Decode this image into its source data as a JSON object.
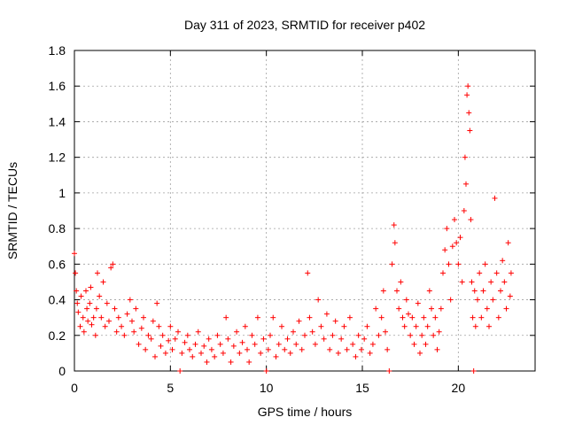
{
  "chart_data": {
    "type": "scatter",
    "title": "Day 311 of 2023, SRMTID for receiver p402",
    "xlabel": "GPS time / hours",
    "ylabel": "SRMTID / TECUs",
    "xlim": [
      0,
      24
    ],
    "ylim": [
      0,
      1.8
    ],
    "xticks": [
      0,
      5,
      10,
      15,
      20
    ],
    "xtick_labels": [
      "0",
      "5",
      "10",
      "15",
      "20"
    ],
    "yticks": [
      0,
      0.2,
      0.4,
      0.6,
      0.8,
      1.0,
      1.2,
      1.4,
      1.6,
      1.8
    ],
    "ytick_labels": [
      "0",
      "0.2",
      "0.4",
      "0.6",
      "0.8",
      "1",
      "1.2",
      "1.4",
      "1.6",
      "1.8"
    ],
    "grid": true,
    "marker": "+",
    "marker_color": "#ff0000",
    "series": [
      {
        "name": "SRMTID",
        "points": [
          [
            0.0,
            0.66
          ],
          [
            0.05,
            0.55
          ],
          [
            0.1,
            0.45
          ],
          [
            0.15,
            0.38
          ],
          [
            0.2,
            0.33
          ],
          [
            0.3,
            0.25
          ],
          [
            0.35,
            0.42
          ],
          [
            0.45,
            0.3
          ],
          [
            0.5,
            0.22
          ],
          [
            0.6,
            0.45
          ],
          [
            0.65,
            0.35
          ],
          [
            0.7,
            0.28
          ],
          [
            0.8,
            0.38
          ],
          [
            0.85,
            0.47
          ],
          [
            0.9,
            0.26
          ],
          [
            1.0,
            0.3
          ],
          [
            1.1,
            0.2
          ],
          [
            1.15,
            0.35
          ],
          [
            1.2,
            0.55
          ],
          [
            1.3,
            0.42
          ],
          [
            1.4,
            0.3
          ],
          [
            1.5,
            0.5
          ],
          [
            1.6,
            0.25
          ],
          [
            1.7,
            0.38
          ],
          [
            1.8,
            0.28
          ],
          [
            1.9,
            0.58
          ],
          [
            2.0,
            0.6
          ],
          [
            2.1,
            0.35
          ],
          [
            2.2,
            0.22
          ],
          [
            2.3,
            0.3
          ],
          [
            2.45,
            0.25
          ],
          [
            2.6,
            0.2
          ],
          [
            2.75,
            0.32
          ],
          [
            2.9,
            0.4
          ],
          [
            3.0,
            0.28
          ],
          [
            3.1,
            0.22
          ],
          [
            3.2,
            0.35
          ],
          [
            3.35,
            0.15
          ],
          [
            3.5,
            0.24
          ],
          [
            3.6,
            0.3
          ],
          [
            3.7,
            0.12
          ],
          [
            3.85,
            0.2
          ],
          [
            4.0,
            0.18
          ],
          [
            4.1,
            0.28
          ],
          [
            4.2,
            0.08
          ],
          [
            4.3,
            0.38
          ],
          [
            4.4,
            0.25
          ],
          [
            4.5,
            0.14
          ],
          [
            4.6,
            0.2
          ],
          [
            4.75,
            0.1
          ],
          [
            4.9,
            0.17
          ],
          [
            5.0,
            0.25
          ],
          [
            5.1,
            0.12
          ],
          [
            5.25,
            0.18
          ],
          [
            5.4,
            0.22
          ],
          [
            5.5,
            0.0
          ],
          [
            5.6,
            0.1
          ],
          [
            5.75,
            0.16
          ],
          [
            5.9,
            0.2
          ],
          [
            6.0,
            0.12
          ],
          [
            6.15,
            0.08
          ],
          [
            6.3,
            0.15
          ],
          [
            6.45,
            0.22
          ],
          [
            6.6,
            0.1
          ],
          [
            6.75,
            0.14
          ],
          [
            6.9,
            0.05
          ],
          [
            7.0,
            0.18
          ],
          [
            7.15,
            0.12
          ],
          [
            7.3,
            0.08
          ],
          [
            7.45,
            0.2
          ],
          [
            7.6,
            0.15
          ],
          [
            7.75,
            0.1
          ],
          [
            7.9,
            0.3
          ],
          [
            8.0,
            0.18
          ],
          [
            8.15,
            0.05
          ],
          [
            8.3,
            0.14
          ],
          [
            8.45,
            0.22
          ],
          [
            8.6,
            0.1
          ],
          [
            8.75,
            0.16
          ],
          [
            8.9,
            0.25
          ],
          [
            9.0,
            0.12
          ],
          [
            9.1,
            0.05
          ],
          [
            9.25,
            0.2
          ],
          [
            9.4,
            0.15
          ],
          [
            9.55,
            0.3
          ],
          [
            9.7,
            0.1
          ],
          [
            9.85,
            0.18
          ],
          [
            10.0,
            0.0
          ],
          [
            10.1,
            0.12
          ],
          [
            10.2,
            0.2
          ],
          [
            10.35,
            0.3
          ],
          [
            10.5,
            0.08
          ],
          [
            10.65,
            0.15
          ],
          [
            10.8,
            0.25
          ],
          [
            10.95,
            0.12
          ],
          [
            11.1,
            0.18
          ],
          [
            11.25,
            0.1
          ],
          [
            11.4,
            0.22
          ],
          [
            11.55,
            0.15
          ],
          [
            11.7,
            0.28
          ],
          [
            11.85,
            0.12
          ],
          [
            12.0,
            0.2
          ],
          [
            12.15,
            0.55
          ],
          [
            12.25,
            0.3
          ],
          [
            12.4,
            0.22
          ],
          [
            12.55,
            0.15
          ],
          [
            12.7,
            0.4
          ],
          [
            12.85,
            0.25
          ],
          [
            13.0,
            0.18
          ],
          [
            13.15,
            0.32
          ],
          [
            13.3,
            0.12
          ],
          [
            13.45,
            0.2
          ],
          [
            13.6,
            0.28
          ],
          [
            13.75,
            0.1
          ],
          [
            13.9,
            0.18
          ],
          [
            14.05,
            0.25
          ],
          [
            14.2,
            0.12
          ],
          [
            14.35,
            0.3
          ],
          [
            14.5,
            0.15
          ],
          [
            14.65,
            0.08
          ],
          [
            14.8,
            0.2
          ],
          [
            14.95,
            0.12
          ],
          [
            15.1,
            0.18
          ],
          [
            15.25,
            0.25
          ],
          [
            15.4,
            0.1
          ],
          [
            15.55,
            0.15
          ],
          [
            15.7,
            0.35
          ],
          [
            15.85,
            0.2
          ],
          [
            16.0,
            0.3
          ],
          [
            16.1,
            0.45
          ],
          [
            16.2,
            0.22
          ],
          [
            16.3,
            0.12
          ],
          [
            16.4,
            0.0
          ],
          [
            16.55,
            0.6
          ],
          [
            16.65,
            0.82
          ],
          [
            16.7,
            0.72
          ],
          [
            16.8,
            0.45
          ],
          [
            16.9,
            0.35
          ],
          [
            17.0,
            0.5
          ],
          [
            17.1,
            0.3
          ],
          [
            17.2,
            0.25
          ],
          [
            17.3,
            0.4
          ],
          [
            17.4,
            0.32
          ],
          [
            17.5,
            0.2
          ],
          [
            17.6,
            0.3
          ],
          [
            17.7,
            0.15
          ],
          [
            17.8,
            0.25
          ],
          [
            17.9,
            0.38
          ],
          [
            18.0,
            0.1
          ],
          [
            18.1,
            0.2
          ],
          [
            18.2,
            0.3
          ],
          [
            18.3,
            0.15
          ],
          [
            18.4,
            0.25
          ],
          [
            18.5,
            0.45
          ],
          [
            18.6,
            0.35
          ],
          [
            18.7,
            0.2
          ],
          [
            18.8,
            0.3
          ],
          [
            18.9,
            0.12
          ],
          [
            19.0,
            0.22
          ],
          [
            19.1,
            0.35
          ],
          [
            19.2,
            0.55
          ],
          [
            19.3,
            0.68
          ],
          [
            19.4,
            0.8
          ],
          [
            19.5,
            0.6
          ],
          [
            19.6,
            0.4
          ],
          [
            19.7,
            0.7
          ],
          [
            19.8,
            0.85
          ],
          [
            19.9,
            0.72
          ],
          [
            20.0,
            0.6
          ],
          [
            20.1,
            0.75
          ],
          [
            20.2,
            0.5
          ],
          [
            20.3,
            0.9
          ],
          [
            20.35,
            1.2
          ],
          [
            20.4,
            1.05
          ],
          [
            20.45,
            1.55
          ],
          [
            20.5,
            1.6
          ],
          [
            20.55,
            1.45
          ],
          [
            20.6,
            1.35
          ],
          [
            20.65,
            0.85
          ],
          [
            20.7,
            0.5
          ],
          [
            20.75,
            0.3
          ],
          [
            20.8,
            0.0
          ],
          [
            20.85,
            0.45
          ],
          [
            20.9,
            0.25
          ],
          [
            21.0,
            0.4
          ],
          [
            21.1,
            0.55
          ],
          [
            21.2,
            0.3
          ],
          [
            21.3,
            0.45
          ],
          [
            21.4,
            0.6
          ],
          [
            21.5,
            0.35
          ],
          [
            21.6,
            0.25
          ],
          [
            21.7,
            0.5
          ],
          [
            21.8,
            0.4
          ],
          [
            21.9,
            0.97
          ],
          [
            22.0,
            0.55
          ],
          [
            22.1,
            0.3
          ],
          [
            22.2,
            0.45
          ],
          [
            22.3,
            0.62
          ],
          [
            22.4,
            0.5
          ],
          [
            22.5,
            0.35
          ],
          [
            22.6,
            0.72
          ],
          [
            22.7,
            0.42
          ],
          [
            22.75,
            0.55
          ]
        ]
      }
    ]
  }
}
